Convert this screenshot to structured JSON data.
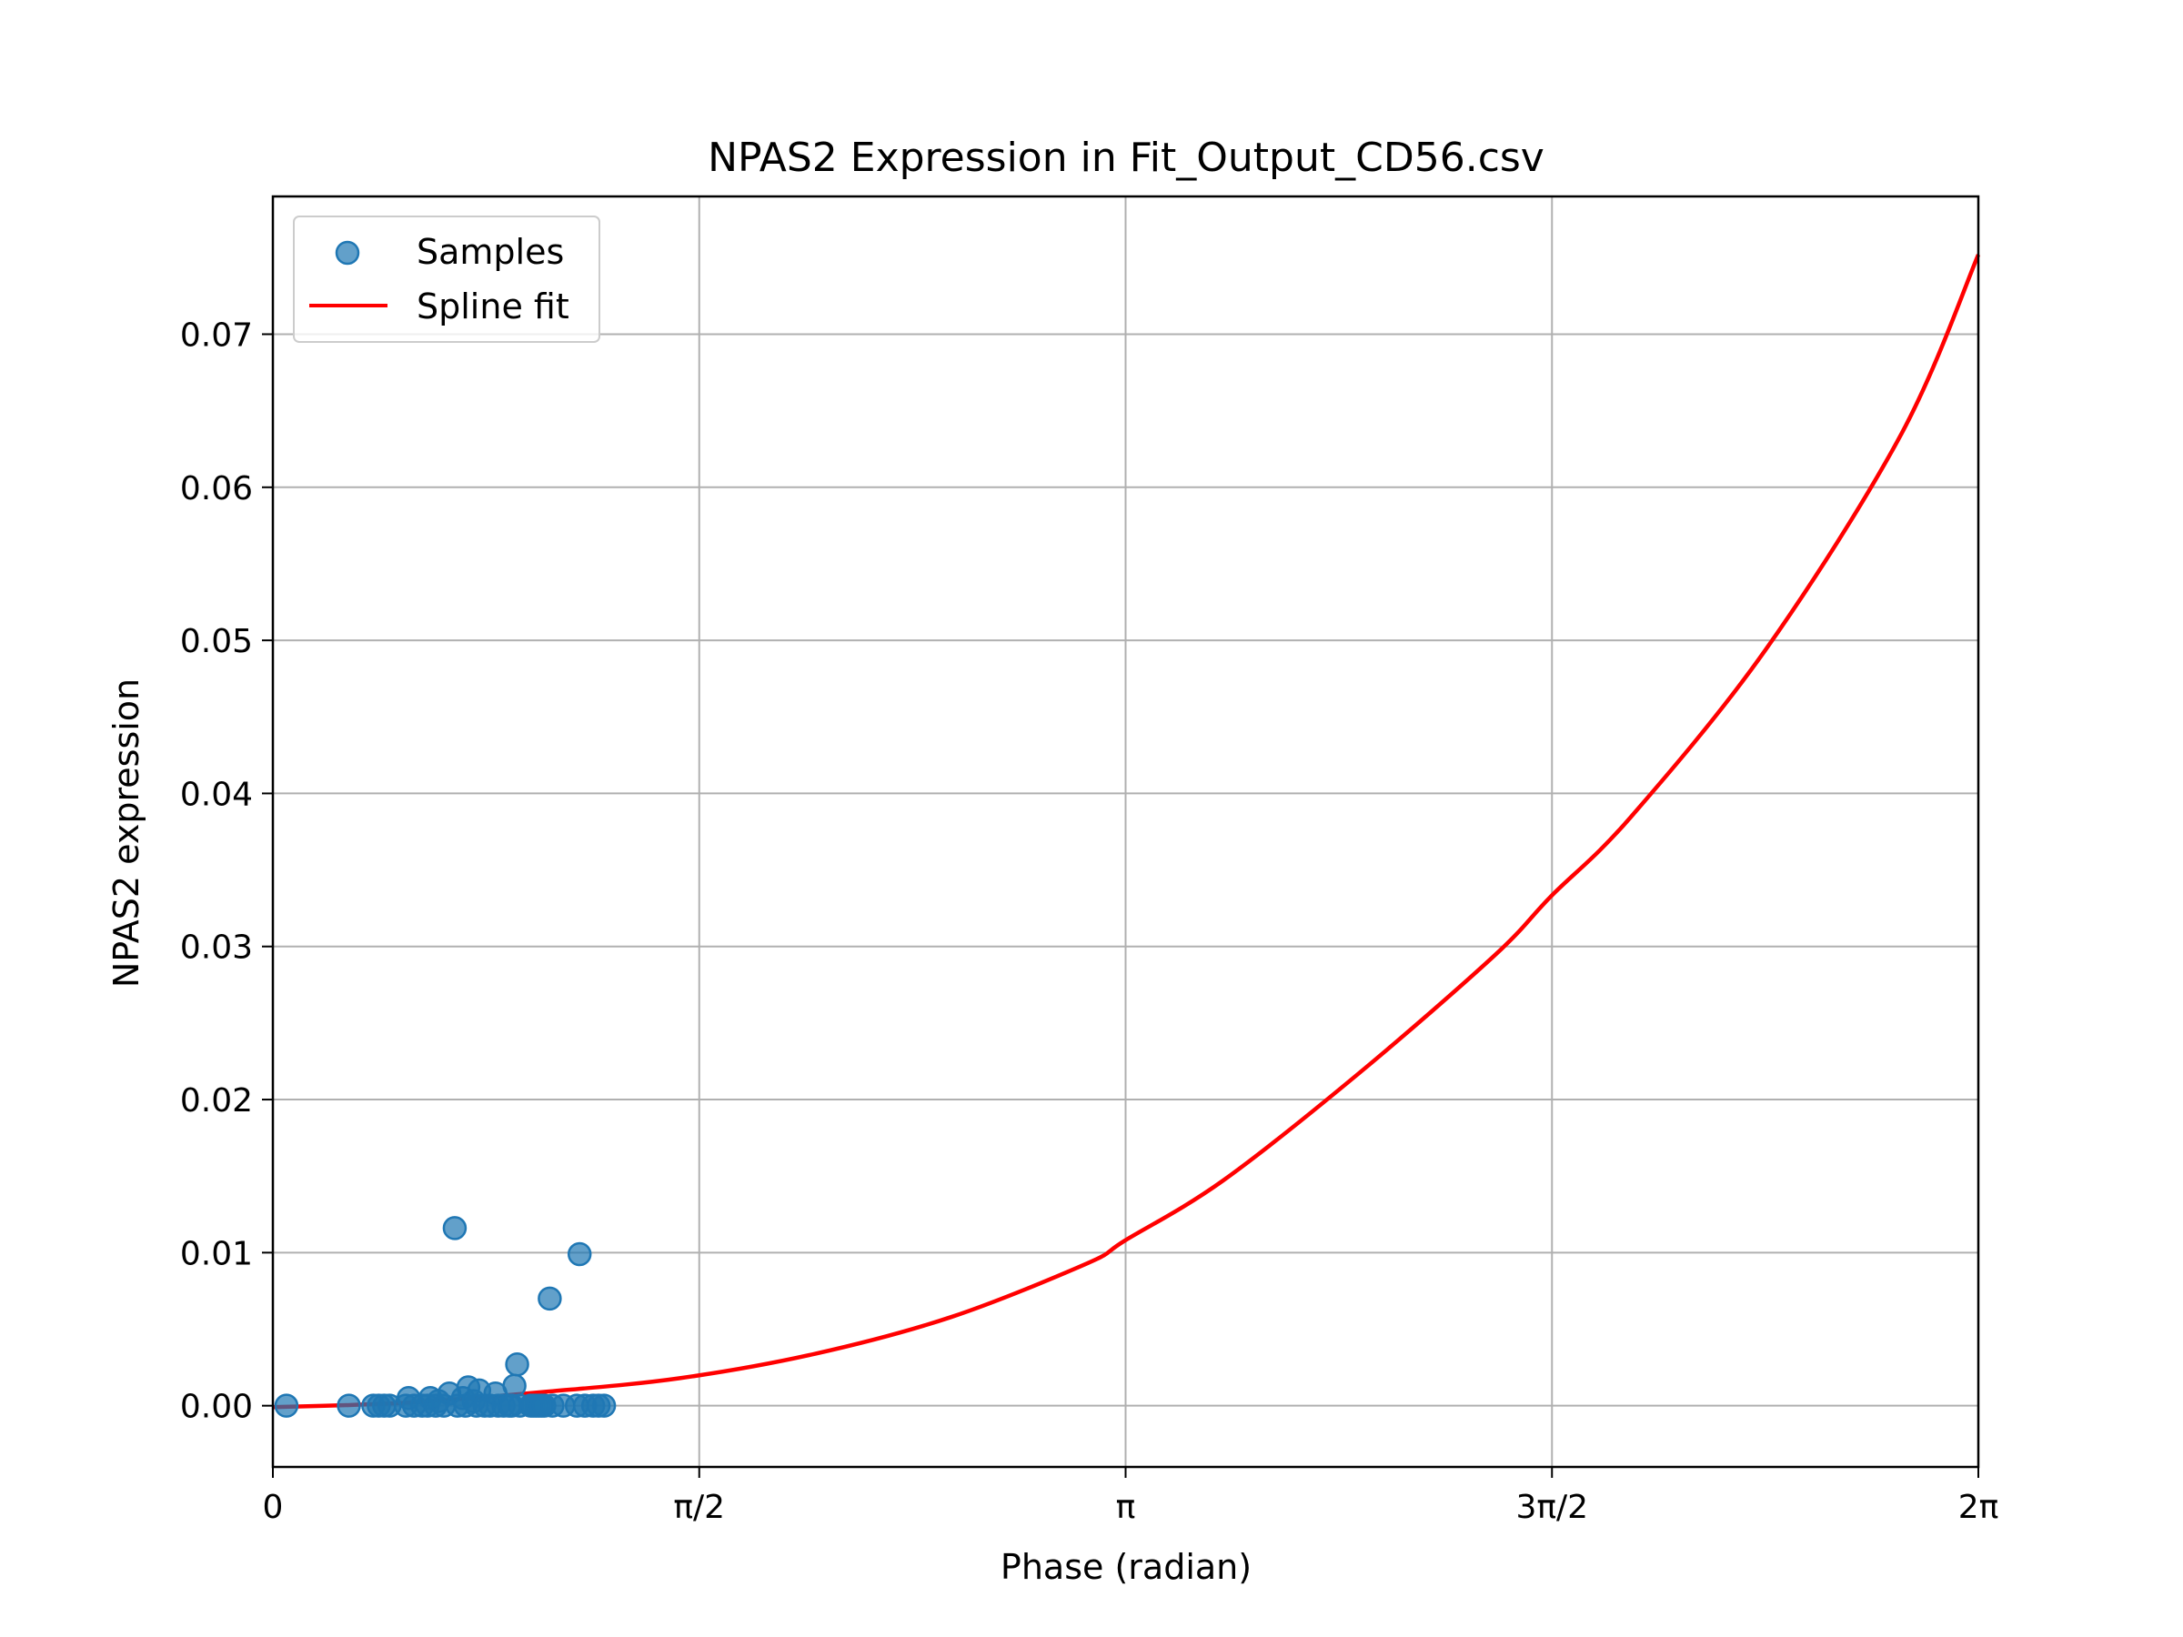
{
  "chart_data": {
    "type": "scatter",
    "title": "NPAS2 Expression in Fit_Output_CD56.csv",
    "xlabel": "Phase (radian)",
    "ylabel": "NPAS2 expression",
    "xlim": [
      0,
      6.283185
    ],
    "ylim": [
      -0.004,
      0.079
    ],
    "grid": true,
    "legend_position": "top-left",
    "x_ticks": [
      {
        "value": 0,
        "label": "0"
      },
      {
        "value": 1.570796,
        "label": "π/2"
      },
      {
        "value": 3.141593,
        "label": "π"
      },
      {
        "value": 4.712389,
        "label": "3π/2"
      },
      {
        "value": 6.283185,
        "label": "2π"
      }
    ],
    "y_ticks": [
      {
        "value": 0.0,
        "label": "0.00"
      },
      {
        "value": 0.01,
        "label": "0.01"
      },
      {
        "value": 0.02,
        "label": "0.02"
      },
      {
        "value": 0.03,
        "label": "0.03"
      },
      {
        "value": 0.04,
        "label": "0.04"
      },
      {
        "value": 0.05,
        "label": "0.05"
      },
      {
        "value": 0.06,
        "label": "0.06"
      },
      {
        "value": 0.07,
        "label": "0.07"
      }
    ],
    "series": [
      {
        "name": "Samples",
        "kind": "scatter",
        "color": "#1f77b4",
        "points": [
          {
            "x": 0.05,
            "y": 0.0
          },
          {
            "x": 0.28,
            "y": 0.0
          },
          {
            "x": 0.37,
            "y": 0.0
          },
          {
            "x": 0.39,
            "y": 0.0
          },
          {
            "x": 0.41,
            "y": 0.0
          },
          {
            "x": 0.43,
            "y": 0.0
          },
          {
            "x": 0.49,
            "y": 0.0
          },
          {
            "x": 0.5,
            "y": 0.0005
          },
          {
            "x": 0.52,
            "y": 0.0
          },
          {
            "x": 0.55,
            "y": 0.0
          },
          {
            "x": 0.57,
            "y": 0.0
          },
          {
            "x": 0.58,
            "y": 0.0005
          },
          {
            "x": 0.6,
            "y": 0.0
          },
          {
            "x": 0.61,
            "y": 0.0003
          },
          {
            "x": 0.63,
            "y": 0.0
          },
          {
            "x": 0.65,
            "y": 0.0008
          },
          {
            "x": 0.67,
            "y": 0.0116
          },
          {
            "x": 0.68,
            "y": 0.0
          },
          {
            "x": 0.7,
            "y": 0.0005
          },
          {
            "x": 0.71,
            "y": 0.0
          },
          {
            "x": 0.72,
            "y": 0.0012
          },
          {
            "x": 0.74,
            "y": 0.0003
          },
          {
            "x": 0.75,
            "y": 0.0
          },
          {
            "x": 0.76,
            "y": 0.001
          },
          {
            "x": 0.78,
            "y": 0.0
          },
          {
            "x": 0.8,
            "y": 0.0
          },
          {
            "x": 0.82,
            "y": 0.0008
          },
          {
            "x": 0.83,
            "y": 0.0
          },
          {
            "x": 0.85,
            "y": 0.0
          },
          {
            "x": 0.87,
            "y": 0.0
          },
          {
            "x": 0.88,
            "y": 0.0
          },
          {
            "x": 0.89,
            "y": 0.0013
          },
          {
            "x": 0.9,
            "y": 0.0027
          },
          {
            "x": 0.91,
            "y": 0.0
          },
          {
            "x": 0.95,
            "y": 0.0
          },
          {
            "x": 0.96,
            "y": 0.0
          },
          {
            "x": 0.97,
            "y": 0.0
          },
          {
            "x": 0.98,
            "y": 0.0
          },
          {
            "x": 0.99,
            "y": 0.0
          },
          {
            "x": 1.02,
            "y": 0.007
          },
          {
            "x": 1.0,
            "y": 0.0
          },
          {
            "x": 1.03,
            "y": 0.0
          },
          {
            "x": 1.07,
            "y": 0.0
          },
          {
            "x": 1.12,
            "y": 0.0
          },
          {
            "x": 1.13,
            "y": 0.0099
          },
          {
            "x": 1.15,
            "y": 0.0
          },
          {
            "x": 1.18,
            "y": 0.0
          },
          {
            "x": 1.2,
            "y": 0.0
          },
          {
            "x": 1.22,
            "y": 0.0
          }
        ]
      },
      {
        "name": "Spline fit",
        "kind": "line",
        "color": "#ff0000",
        "points": [
          {
            "x": 0.0,
            "y": -0.0001
          },
          {
            "x": 0.5,
            "y": 0.0002
          },
          {
            "x": 1.0,
            "y": 0.0009
          },
          {
            "x": 1.5,
            "y": 0.0018
          },
          {
            "x": 2.0,
            "y": 0.0034
          },
          {
            "x": 2.5,
            "y": 0.0058
          },
          {
            "x": 3.0,
            "y": 0.0093
          },
          {
            "x": 3.14,
            "y": 0.0108
          },
          {
            "x": 3.5,
            "y": 0.0147
          },
          {
            "x": 4.0,
            "y": 0.0217
          },
          {
            "x": 4.5,
            "y": 0.0294
          },
          {
            "x": 4.71,
            "y": 0.0333
          },
          {
            "x": 5.0,
            "y": 0.0384
          },
          {
            "x": 5.5,
            "y": 0.0494
          },
          {
            "x": 6.0,
            "y": 0.0635
          },
          {
            "x": 6.2832,
            "y": 0.0752
          }
        ]
      }
    ]
  }
}
